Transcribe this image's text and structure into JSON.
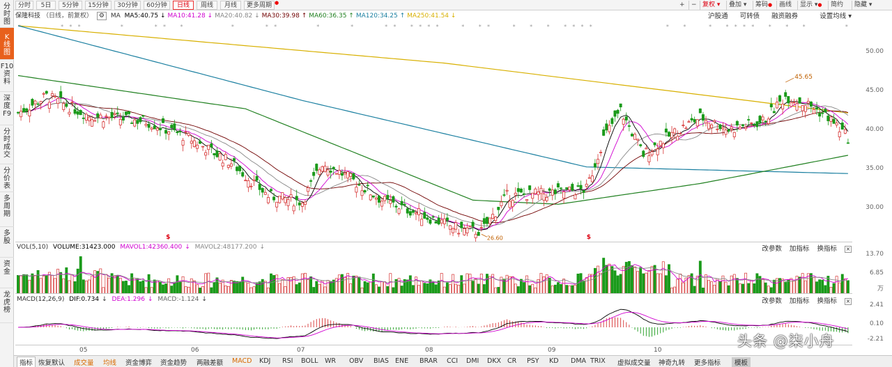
{
  "left_nav": [
    {
      "label": "分\n时\n图",
      "active": false
    },
    {
      "label": "K\n线\n图",
      "active": true
    },
    {
      "label": "F10\n资\n料",
      "active": false
    },
    {
      "label": "深\n度\nF9",
      "active": false
    },
    {
      "label": "分\n时\n成\n交",
      "active": false
    },
    {
      "label": "分\n价\n表",
      "active": false
    },
    {
      "label": "多\n周\n期",
      "active": false
    },
    {
      "label": "多\n股",
      "active": false
    },
    {
      "label": "资\n金",
      "active": false
    },
    {
      "label": "龙\n虎\n榜",
      "active": false
    }
  ],
  "toolbar": {
    "periods": [
      "分时",
      "5日",
      "5分钟",
      "15分钟",
      "30分钟",
      "60分钟",
      "日线",
      "周线",
      "月线",
      "更多周期"
    ],
    "active_period": "日线",
    "right_items": [
      "复权",
      "叠加",
      "筹码",
      "画线",
      "显示",
      "简约",
      "隐藏"
    ]
  },
  "price_legend": {
    "stock": "保隆科技",
    "mode": "（日线，前复权）",
    "ma_label": "MA",
    "items": [
      {
        "text": "MA5:40.75",
        "color": "#000000",
        "arrow": "↓"
      },
      {
        "text": "MA10:41.28",
        "color": "#d000d0",
        "arrow": "↓"
      },
      {
        "text": "MA20:40.82",
        "color": "#888888",
        "arrow": "↓"
      },
      {
        "text": "MA30:39.98",
        "color": "#700000",
        "arrow": "↑"
      },
      {
        "text": "MA60:36.35",
        "color": "#208020",
        "arrow": "↑"
      },
      {
        "text": "MA120:34.25",
        "color": "#1a7fa0",
        "arrow": "↑"
      },
      {
        "text": "MA250:41.54",
        "color": "#d8b000",
        "arrow": "↓"
      }
    ]
  },
  "right_links": [
    "沪股通",
    "可转债",
    "融资融券",
    "设置均线"
  ],
  "price_axis": [
    "50.00",
    "45.00",
    "40.00",
    "35.00",
    "30.00"
  ],
  "annotations": {
    "high": "45.65",
    "low": "26.60"
  },
  "volume": {
    "legend_name": "VOL(5,10)",
    "items": [
      {
        "text": "VOLUME:31423.000",
        "color": "#000000"
      },
      {
        "text": "MAVOL1:42360.400",
        "color": "#d000d0"
      },
      {
        "text": "MAVOL2:48177.200",
        "color": "#888888"
      }
    ],
    "axis": [
      "13.70",
      "6.85",
      "万"
    ]
  },
  "macd": {
    "legend_name": "MACD(12,26,9)",
    "items": [
      {
        "text": "DIF:0.734",
        "color": "#000000"
      },
      {
        "text": "DEA:1.296",
        "color": "#d000d0"
      },
      {
        "text": "MACD:-1.124",
        "color": "#666666"
      }
    ],
    "axis": [
      "2.41",
      "0.10",
      "-2.21"
    ]
  },
  "pane_actions": [
    "改参数",
    "加指标",
    "换指标"
  ],
  "date_axis": [
    "05",
    "06",
    "07",
    "08",
    "09",
    "10"
  ],
  "bottom_tabs": [
    {
      "label": "指标",
      "style": "first"
    },
    {
      "label": "恢复默认",
      "style": ""
    },
    {
      "label": "成交量",
      "style": "orange"
    },
    {
      "label": "均线",
      "style": "orange"
    },
    {
      "label": "资金博弈",
      "style": ""
    },
    {
      "label": "资金趋势",
      "style": ""
    },
    {
      "label": "两融差额",
      "style": ""
    },
    {
      "label": "MACD",
      "style": "orange"
    },
    {
      "label": "KDJ",
      "style": ""
    },
    {
      "label": "RSI",
      "style": ""
    },
    {
      "label": "BOLL",
      "style": ""
    },
    {
      "label": "WR",
      "style": ""
    },
    {
      "label": "OBV",
      "style": ""
    },
    {
      "label": "BIAS",
      "style": ""
    },
    {
      "label": "ENE",
      "style": ""
    },
    {
      "label": "BRAR",
      "style": ""
    },
    {
      "label": "CCI",
      "style": ""
    },
    {
      "label": "DMI",
      "style": ""
    },
    {
      "label": "DKX",
      "style": ""
    },
    {
      "label": "CR",
      "style": ""
    },
    {
      "label": "PSY",
      "style": ""
    },
    {
      "label": "KD",
      "style": ""
    },
    {
      "label": "DMA",
      "style": ""
    },
    {
      "label": "TRIX",
      "style": ""
    },
    {
      "label": "虚拟成交量",
      "style": ""
    },
    {
      "label": "神奇九转",
      "style": ""
    },
    {
      "label": "更多指标",
      "style": ""
    },
    {
      "label": "模板",
      "style": "template"
    }
  ],
  "watermark": "头条 @柒小舟",
  "colors": {
    "up": "#d63333",
    "down": "#1a9a1a",
    "accent": "#e8601c"
  }
}
